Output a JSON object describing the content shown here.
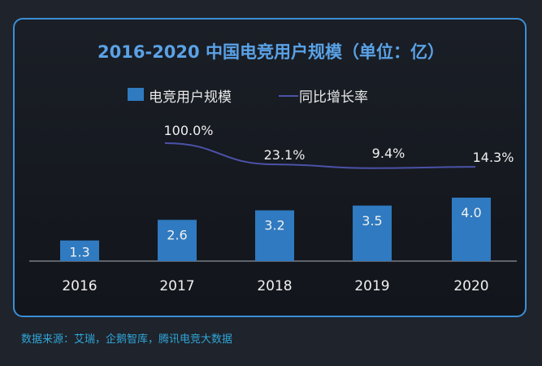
{
  "chart_data": {
    "type": "bar+line",
    "title": "2016-2020 中国电竞用户规模（单位：亿）",
    "categories": [
      "2016",
      "2017",
      "2018",
      "2019",
      "2020"
    ],
    "series": [
      {
        "name": "电竞用户规模",
        "type": "bar",
        "values": [
          1.3,
          2.6,
          3.2,
          3.5,
          4.0
        ],
        "labels": [
          "1.3",
          "2.6",
          "3.2",
          "3.5",
          "4.0"
        ],
        "color": "#2f7ac0"
      },
      {
        "name": "同比增长率",
        "type": "line",
        "values": [
          null,
          100.0,
          23.1,
          9.4,
          14.3
        ],
        "labels": [
          "",
          "100.0%",
          "23.1%",
          "9.4%",
          "14.3%"
        ],
        "color": "#4b52a8"
      }
    ],
    "legend": "top",
    "grid": false
  },
  "source": "数据来源：艾瑞，企鹅智库，腾讯电竞大数据"
}
